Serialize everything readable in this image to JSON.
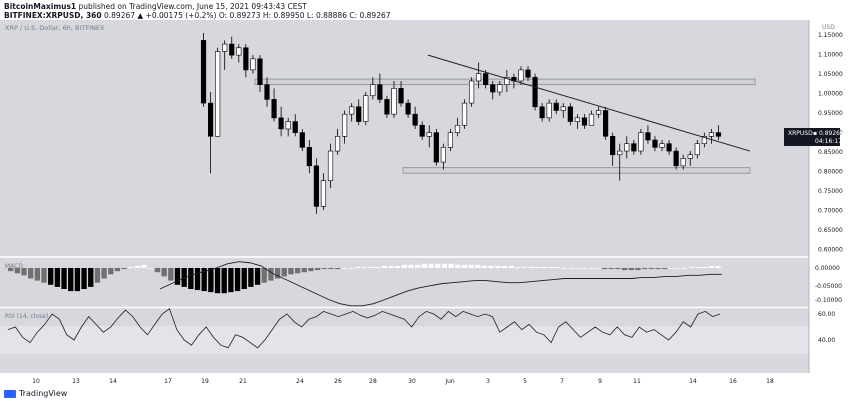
{
  "header": {
    "author": "BitcoinMaximus1",
    "published_text": "published on TradingView.com, June 15, 2021 09:43:43 CEST",
    "symbol": "BITFINEX:XRPUSD, 360",
    "change": "0.89267 ▲ +0.00175 (+0.2%)",
    "ohlc": "O: 0.89273 H: 0.89950 L: 0.88886 C: 0.89267"
  },
  "pane_title": "XRP / U.S. Dollar, 6h, BITFINEX",
  "price_axis": {
    "currency": "USD",
    "ticks": [
      "1.15000",
      "1.10000",
      "1.05000",
      "1.00000",
      "0.95000",
      "0.90000",
      "0.85000",
      "0.80000",
      "0.75000",
      "0.70000",
      "0.65000",
      "0.60000"
    ]
  },
  "last_price": {
    "symbol": "XRPUSD",
    "value": "0.89267",
    "countdown": "04:16:17"
  },
  "macd_axis": {
    "ticks": [
      "0.00000",
      "-0.05000",
      "-0.10000"
    ]
  },
  "rsi": {
    "label": "RSI (14, close)",
    "ticks": [
      "60.00",
      "40.00"
    ]
  },
  "x_axis": {
    "ticks": [
      "10",
      "13",
      "14",
      "17",
      "19",
      "21",
      "24",
      "26",
      "28",
      "30",
      "Jun",
      "3",
      "5",
      "7",
      "9",
      "11",
      "14",
      "16",
      "18"
    ]
  },
  "footer": {
    "brand": "TradingView"
  },
  "colors": {
    "bull": "#ffffff",
    "bear": "#000000",
    "pane_bg": "#d6d8de",
    "zone_fill": "#c9cbd1",
    "line": "#1e1e1e"
  },
  "chart_data": {
    "type": "candlestick",
    "price_ylim": [
      0.6,
      1.18
    ],
    "resistance_zone": [
      1.04,
      1.055
    ],
    "support_zone": [
      0.8,
      0.815
    ],
    "descending_trendline": [
      [
        0,
        1.12
      ],
      [
        1,
        0.86
      ]
    ],
    "candles": [
      [
        1.16,
        1.18,
        0.98,
        0.99
      ],
      [
        0.99,
        1.02,
        0.8,
        0.9
      ],
      [
        0.9,
        1.14,
        0.9,
        1.13
      ],
      [
        1.13,
        1.16,
        1.08,
        1.15
      ],
      [
        1.15,
        1.17,
        1.11,
        1.12
      ],
      [
        1.12,
        1.15,
        1.1,
        1.14
      ],
      [
        1.14,
        1.15,
        1.06,
        1.08
      ],
      [
        1.08,
        1.12,
        1.07,
        1.11
      ],
      [
        1.11,
        1.12,
        1.02,
        1.04
      ],
      [
        1.04,
        1.06,
        0.98,
        1.0
      ],
      [
        1.0,
        1.03,
        0.94,
        0.95
      ],
      [
        0.95,
        0.98,
        0.9,
        0.92
      ],
      [
        0.92,
        0.95,
        0.9,
        0.94
      ],
      [
        0.94,
        0.96,
        0.9,
        0.91
      ],
      [
        0.91,
        0.92,
        0.86,
        0.87
      ],
      [
        0.87,
        0.89,
        0.8,
        0.82
      ],
      [
        0.82,
        0.84,
        0.69,
        0.71
      ],
      [
        0.71,
        0.8,
        0.7,
        0.78
      ],
      [
        0.78,
        0.88,
        0.76,
        0.86
      ],
      [
        0.86,
        0.92,
        0.85,
        0.9
      ],
      [
        0.9,
        0.97,
        0.88,
        0.96
      ],
      [
        0.96,
        0.99,
        0.94,
        0.98
      ],
      [
        0.98,
        1.0,
        0.93,
        0.94
      ],
      [
        0.94,
        1.02,
        0.93,
        1.01
      ],
      [
        1.01,
        1.06,
        1.0,
        1.04
      ],
      [
        1.04,
        1.07,
        0.99,
        1.0
      ],
      [
        1.0,
        1.01,
        0.95,
        0.96
      ],
      [
        0.96,
        1.05,
        0.95,
        1.03
      ],
      [
        1.03,
        1.05,
        0.98,
        0.99
      ],
      [
        0.99,
        1.0,
        0.95,
        0.96
      ],
      [
        0.96,
        0.98,
        0.92,
        0.93
      ],
      [
        0.93,
        0.94,
        0.89,
        0.9
      ],
      [
        0.9,
        0.93,
        0.87,
        0.91
      ],
      [
        0.91,
        0.92,
        0.82,
        0.83
      ],
      [
        0.83,
        0.88,
        0.81,
        0.87
      ],
      [
        0.87,
        0.92,
        0.86,
        0.91
      ],
      [
        0.91,
        0.95,
        0.9,
        0.93
      ],
      [
        0.93,
        1.0,
        0.92,
        0.99
      ],
      [
        0.99,
        1.06,
        0.98,
        1.05
      ],
      [
        1.05,
        1.1,
        1.03,
        1.07
      ],
      [
        1.07,
        1.08,
        1.03,
        1.04
      ],
      [
        1.04,
        1.05,
        1.0,
        1.02
      ],
      [
        1.02,
        1.05,
        1.01,
        1.04
      ],
      [
        1.04,
        1.08,
        1.02,
        1.06
      ],
      [
        1.06,
        1.07,
        1.03,
        1.05
      ],
      [
        1.05,
        1.09,
        1.04,
        1.08
      ],
      [
        1.08,
        1.09,
        1.05,
        1.06
      ],
      [
        1.06,
        1.07,
        0.97,
        0.98
      ],
      [
        0.98,
        0.99,
        0.94,
        0.95
      ],
      [
        0.95,
        1.0,
        0.94,
        0.99
      ],
      [
        0.99,
        1.0,
        0.96,
        0.97
      ],
      [
        0.97,
        0.99,
        0.95,
        0.98
      ],
      [
        0.98,
        0.99,
        0.93,
        0.94
      ],
      [
        0.94,
        0.96,
        0.92,
        0.95
      ],
      [
        0.95,
        0.96,
        0.92,
        0.93
      ],
      [
        0.93,
        0.97,
        0.93,
        0.96
      ],
      [
        0.96,
        0.98,
        0.95,
        0.97
      ],
      [
        0.97,
        0.98,
        0.89,
        0.9
      ],
      [
        0.9,
        0.91,
        0.82,
        0.85
      ],
      [
        0.85,
        0.88,
        0.78,
        0.86
      ],
      [
        0.86,
        0.9,
        0.84,
        0.88
      ],
      [
        0.88,
        0.89,
        0.85,
        0.86
      ],
      [
        0.86,
        0.92,
        0.85,
        0.91
      ],
      [
        0.91,
        0.93,
        0.88,
        0.89
      ],
      [
        0.89,
        0.9,
        0.86,
        0.87
      ],
      [
        0.87,
        0.89,
        0.86,
        0.88
      ],
      [
        0.88,
        0.89,
        0.85,
        0.86
      ],
      [
        0.86,
        0.87,
        0.81,
        0.82
      ],
      [
        0.82,
        0.85,
        0.81,
        0.84
      ],
      [
        0.84,
        0.86,
        0.82,
        0.85
      ],
      [
        0.85,
        0.89,
        0.84,
        0.88
      ],
      [
        0.88,
        0.91,
        0.87,
        0.9
      ],
      [
        0.9,
        0.92,
        0.88,
        0.91
      ],
      [
        0.91,
        0.93,
        0.89,
        0.9
      ]
    ],
    "macd_hist": [
      -3,
      -5,
      -7,
      -10,
      -12,
      -14,
      -16,
      -18,
      -20,
      -22,
      -22,
      -20,
      -18,
      -14,
      -10,
      -6,
      -3,
      -1,
      1,
      2,
      3,
      0,
      -4,
      -8,
      -12,
      -16,
      -18,
      -20,
      -21,
      -22,
      -23,
      -24,
      -24,
      -23,
      -22,
      -20,
      -18,
      -16,
      -14,
      -12,
      -10,
      -8,
      -6,
      -5,
      -4,
      -3,
      -2,
      -1,
      -1,
      -1,
      0,
      0,
      1,
      1,
      1,
      1,
      2,
      2,
      2,
      3,
      3,
      3,
      4,
      4,
      4,
      4,
      4,
      3,
      3,
      3,
      3,
      2,
      2,
      2,
      2,
      2,
      1,
      1,
      1,
      1,
      1,
      1,
      1,
      0,
      0,
      0,
      0,
      0,
      0,
      -1,
      -1,
      -1,
      -2,
      -2,
      -2,
      -1,
      -1,
      -1,
      -1,
      0,
      0,
      0,
      1,
      1,
      1,
      2,
      2
    ],
    "macd_line": [
      -20,
      -15,
      -10,
      -6,
      -3,
      0,
      4,
      6,
      5,
      2,
      -5,
      -10,
      -15,
      -20,
      -25,
      -30,
      -34,
      -36,
      -36,
      -34,
      -30,
      -26,
      -22,
      -19,
      -17,
      -15,
      -14,
      -13,
      -12,
      -12,
      -13,
      -14,
      -14,
      -13,
      -12,
      -11,
      -10,
      -10,
      -10,
      -10,
      -10,
      -10,
      -10,
      -9,
      -9,
      -8,
      -8,
      -7,
      -7,
      -6,
      -6
    ],
    "rsi_values": [
      48,
      50,
      42,
      38,
      46,
      52,
      60,
      56,
      44,
      40,
      50,
      58,
      52,
      46,
      50,
      57,
      63,
      58,
      50,
      44,
      52,
      60,
      64,
      48,
      40,
      36,
      44,
      50,
      42,
      36,
      34,
      44,
      42,
      38,
      34,
      40,
      48,
      56,
      60,
      54,
      50,
      56,
      58,
      62,
      60,
      58,
      60,
      62,
      59,
      57,
      59,
      62,
      60,
      58,
      56,
      50,
      58,
      62,
      60,
      56,
      62,
      58,
      62,
      60,
      58,
      60,
      58,
      46,
      50,
      54,
      48,
      52,
      46,
      44,
      38,
      50,
      54,
      48,
      42,
      46,
      50,
      46,
      44,
      50,
      44,
      42,
      50,
      46,
      48,
      44,
      40,
      46,
      54,
      50,
      60,
      62,
      58,
      60
    ]
  }
}
